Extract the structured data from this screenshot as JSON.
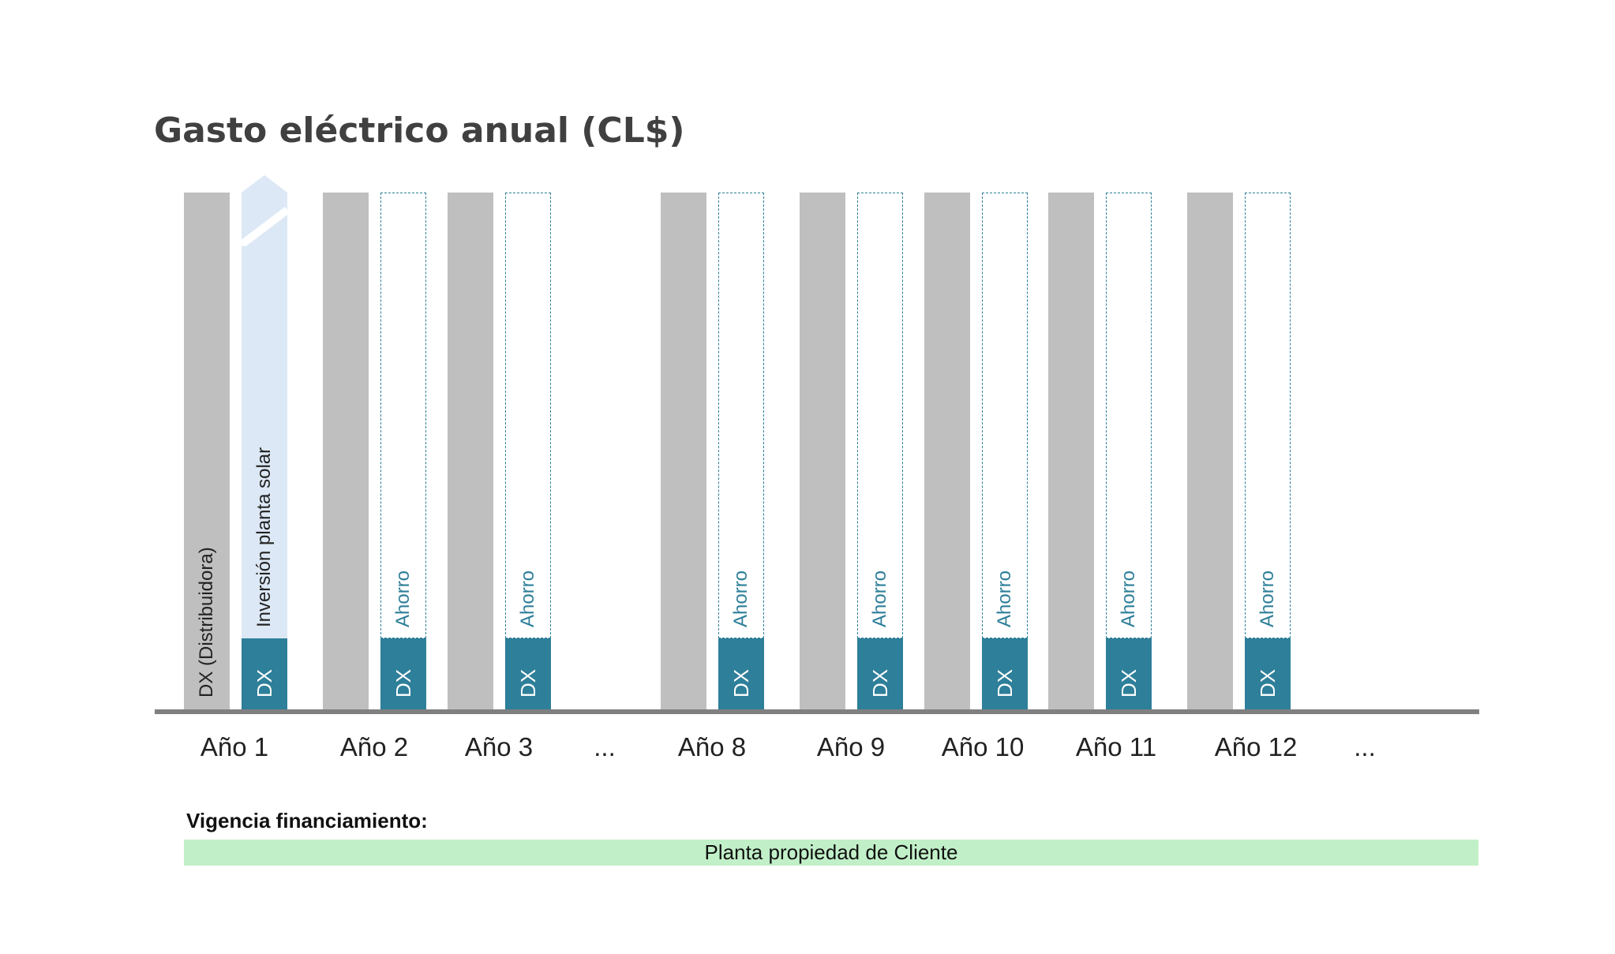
{
  "title": "Gasto eléctrico anual (CL$)",
  "bar_labels": {
    "distributor": "DX (Distribuidora)",
    "solar_investment": "Inversión planta solar",
    "savings": "Ahorro",
    "dx": "DX"
  },
  "years": [
    {
      "label": "Año 1",
      "kind": "first"
    },
    {
      "label": "Año 2",
      "kind": "normal"
    },
    {
      "label": "Año 3",
      "kind": "normal"
    },
    {
      "label": "...",
      "kind": "gap"
    },
    {
      "label": "Año 8",
      "kind": "normal"
    },
    {
      "label": "Año 9",
      "kind": "normal"
    },
    {
      "label": "Año 10",
      "kind": "normal"
    },
    {
      "label": "Año 11",
      "kind": "normal"
    },
    {
      "label": "Año 12",
      "kind": "normal"
    },
    {
      "label": "...",
      "kind": "gap"
    }
  ],
  "financing": {
    "label": "Vigencia financiamiento:",
    "bar_text": "Planta propiedad de Cliente"
  },
  "colors": {
    "gray_bar": "#bfbfbf",
    "solar_bar": "#dce8f5",
    "teal": "#2e7f99",
    "green": "#c1f0c8",
    "axis": "#808080"
  }
}
